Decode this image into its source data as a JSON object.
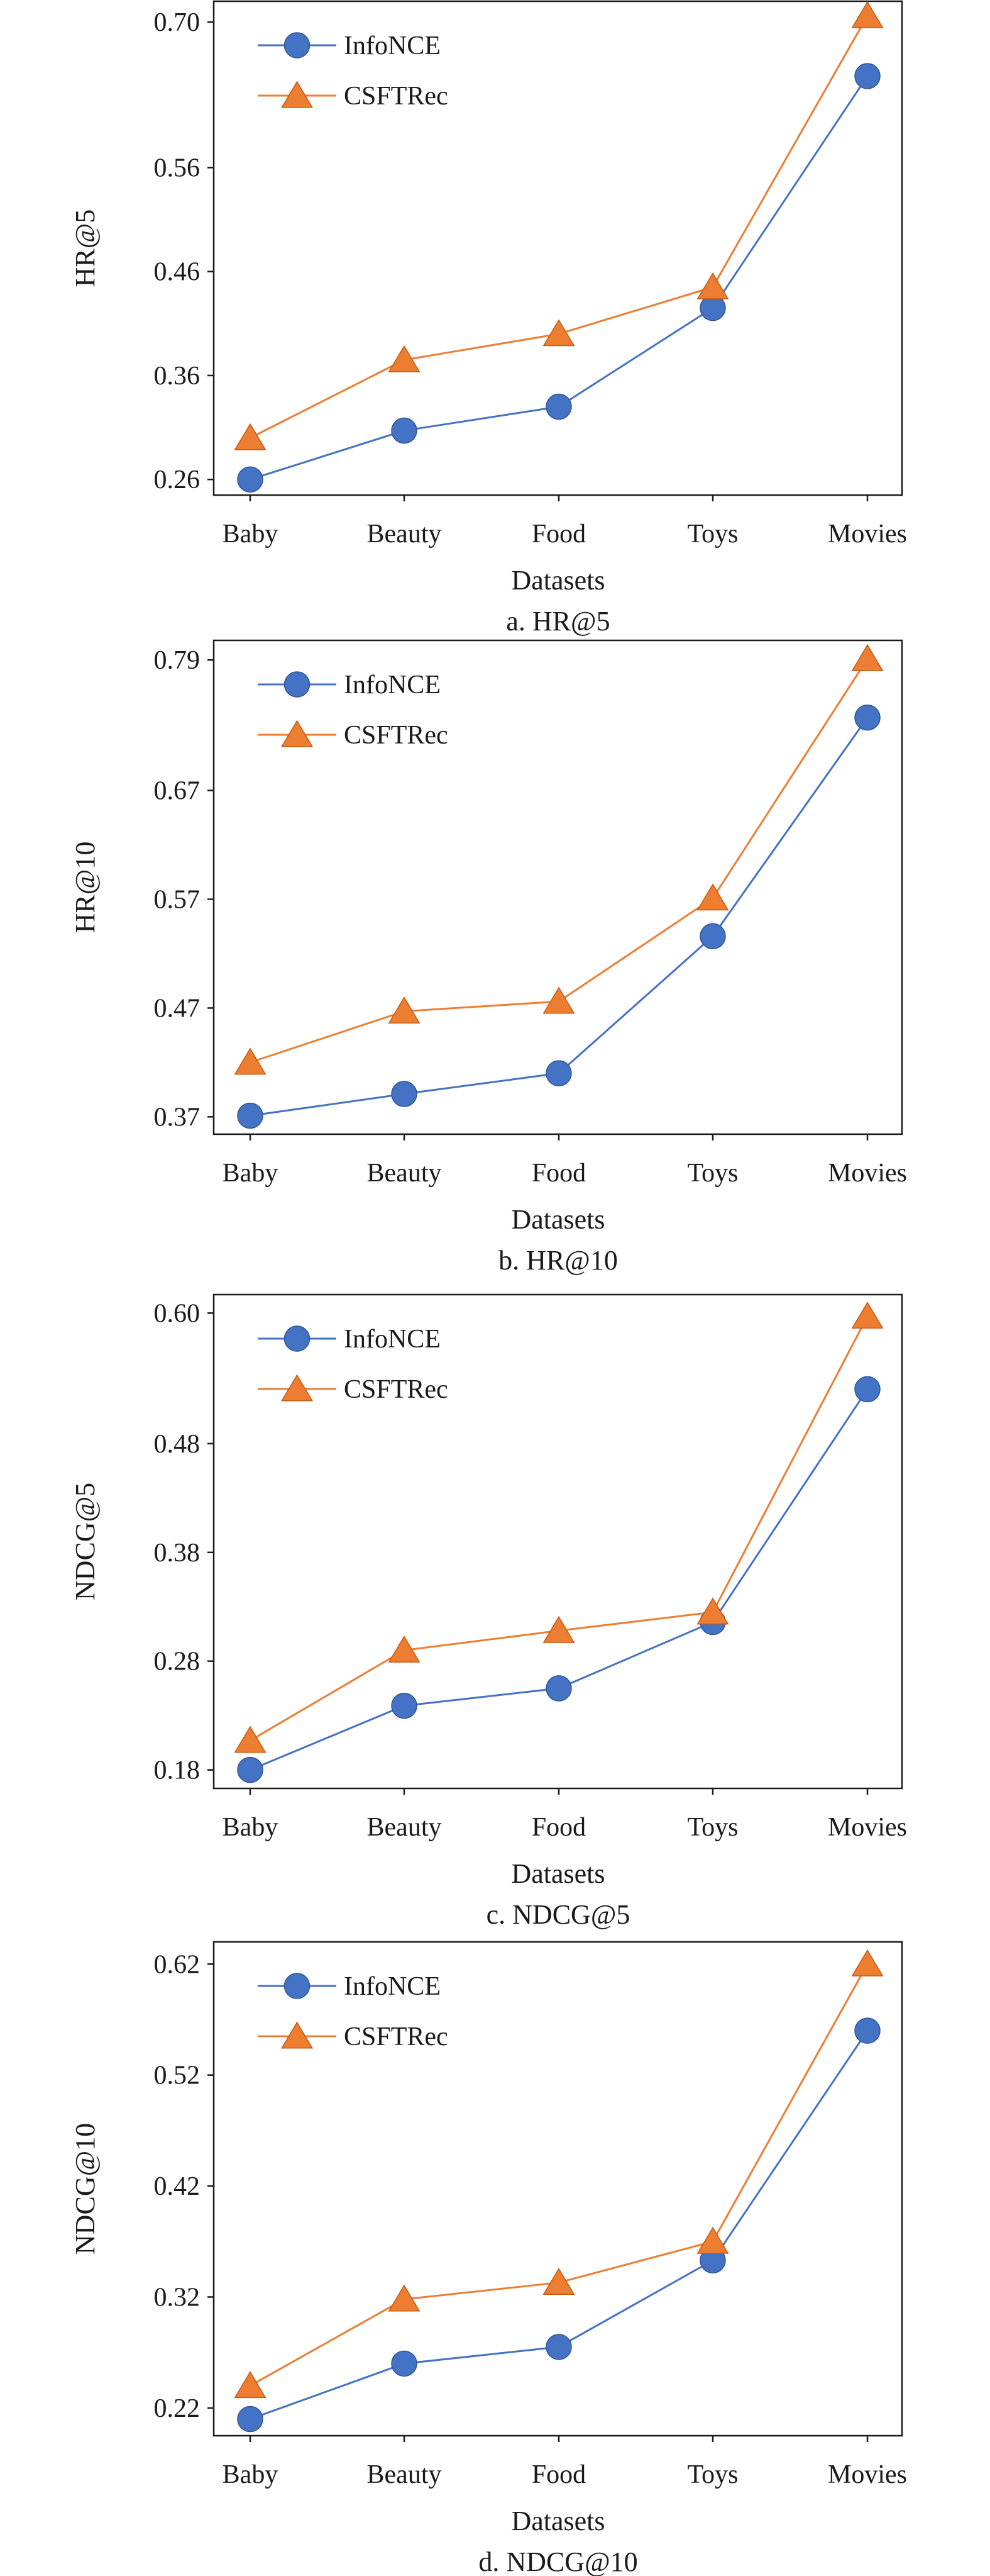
{
  "colors": {
    "InfoNCE": "#4472c4",
    "CSFTRec": "#ed7d31"
  },
  "chart_data": [
    {
      "type": "line",
      "categories": [
        "Baby",
        "Beauty",
        "Food",
        "Toys",
        "Movies"
      ],
      "series": [
        {
          "name": "InfoNCE",
          "marker": "circle",
          "values": [
            0.26,
            0.307,
            0.33,
            0.425,
            0.648
          ]
        },
        {
          "name": "CSFTRec",
          "marker": "triangle",
          "values": [
            0.3,
            0.375,
            0.4,
            0.445,
            0.706
          ]
        }
      ],
      "yticks": [
        0.26,
        0.36,
        0.46,
        0.56,
        0.7
      ],
      "ylim": [
        0.245,
        0.72
      ],
      "xlabel": "Datasets",
      "ylabel": "HR@5",
      "caption": "a. HR@5",
      "legend": "top-left",
      "grid": false
    },
    {
      "type": "line",
      "categories": [
        "Baby",
        "Beauty",
        "Food",
        "Toys",
        "Movies"
      ],
      "series": [
        {
          "name": "InfoNCE",
          "marker": "circle",
          "values": [
            0.371,
            0.391,
            0.41,
            0.536,
            0.737
          ]
        },
        {
          "name": "CSFTRec",
          "marker": "triangle",
          "values": [
            0.42,
            0.467,
            0.476,
            0.571,
            0.791
          ]
        }
      ],
      "yticks": [
        0.37,
        0.47,
        0.57,
        0.67,
        0.79
      ],
      "ylim": [
        0.354,
        0.808
      ],
      "xlabel": "Datasets",
      "ylabel": "HR@10",
      "caption": "b. HR@10",
      "legend": "top-left",
      "grid": false
    },
    {
      "type": "line",
      "categories": [
        "Baby",
        "Beauty",
        "Food",
        "Toys",
        "Movies"
      ],
      "series": [
        {
          "name": "InfoNCE",
          "marker": "circle",
          "values": [
            0.18,
            0.239,
            0.255,
            0.316,
            0.53
          ]
        },
        {
          "name": "CSFTRec",
          "marker": "triangle",
          "values": [
            0.207,
            0.29,
            0.308,
            0.325,
            0.597
          ]
        }
      ],
      "yticks": [
        0.18,
        0.28,
        0.38,
        0.48,
        0.6
      ],
      "ylim": [
        0.163,
        0.617
      ],
      "xlabel": "Datasets",
      "ylabel": "NDCG@5",
      "caption": "c. NDCG@5",
      "legend": "top-left",
      "grid": false
    },
    {
      "type": "line",
      "categories": [
        "Baby",
        "Beauty",
        "Food",
        "Toys",
        "Movies"
      ],
      "series": [
        {
          "name": "InfoNCE",
          "marker": "circle",
          "values": [
            0.21,
            0.26,
            0.275,
            0.353,
            0.56
          ]
        },
        {
          "name": "CSFTRec",
          "marker": "triangle",
          "values": [
            0.24,
            0.318,
            0.333,
            0.37,
            0.62
          ]
        }
      ],
      "yticks": [
        0.22,
        0.32,
        0.42,
        0.52,
        0.62
      ],
      "ylim": [
        0.195,
        0.64
      ],
      "xlabel": "Datasets",
      "ylabel": "NDCG@10",
      "caption": "d. NDCG@10",
      "legend": "top-left",
      "grid": false
    }
  ]
}
